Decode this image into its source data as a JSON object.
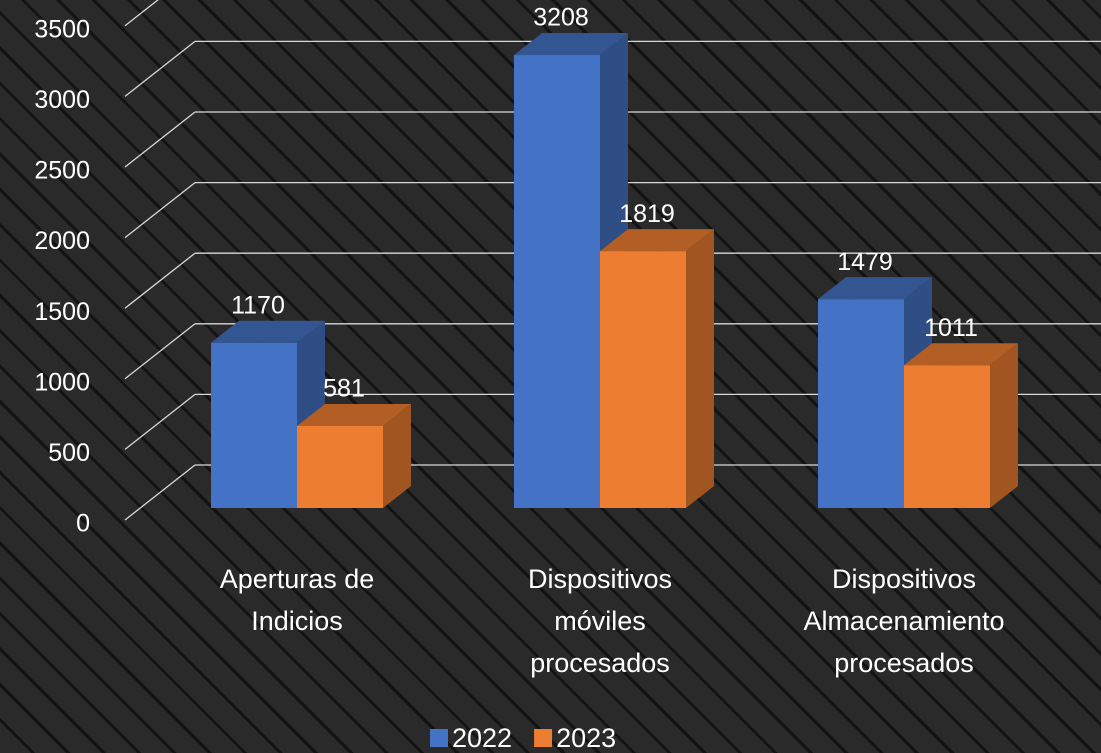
{
  "chart_data": {
    "type": "bar3d",
    "categories": [
      "Aperturas de Indicios",
      "Dispositivos móviles procesados",
      "Dispositivos Almacenamiento procesados"
    ],
    "series": [
      {
        "name": "2022",
        "color": "#4472c4",
        "values": [
          1170,
          3208,
          1479
        ]
      },
      {
        "name": "2023",
        "color": "#ed7d31",
        "values": [
          581,
          1819,
          1011
        ]
      }
    ],
    "ylim": [
      0,
      3500
    ],
    "yticks": [
      0,
      500,
      1000,
      1500,
      2000,
      2500,
      3000,
      3500
    ],
    "grid": true,
    "legend": "bottom"
  }
}
